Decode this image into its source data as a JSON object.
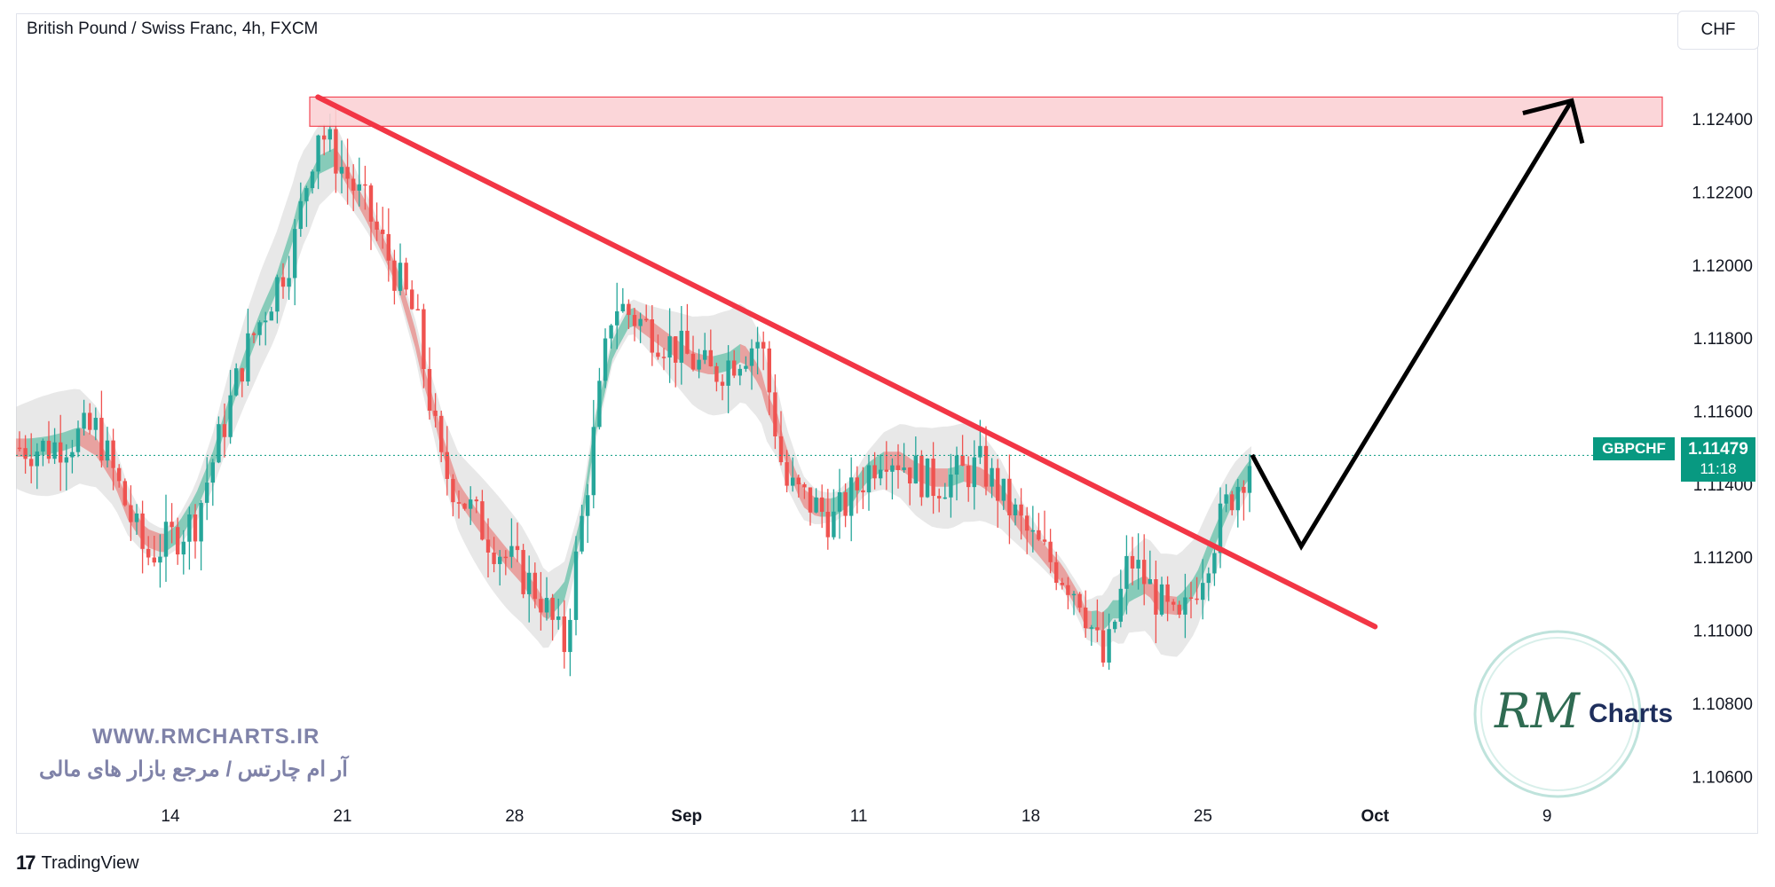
{
  "header": {
    "symbol_title": "British Pound / Swiss Franc, 4h, FXCM",
    "currency": "CHF"
  },
  "price_label": {
    "symbol": "GBPCHF",
    "price": "1.11479",
    "countdown": "11:18"
  },
  "watermark": {
    "url": "WWW.RMCHARTS.IR",
    "persian_text": "آر ام چارتس / مرجع بازار های مالی",
    "logo_word": "Charts",
    "logo_initials": "RM"
  },
  "footer": {
    "brand": "TradingView"
  },
  "colors": {
    "up": "#26a69a",
    "down": "#ef5350",
    "trendline": "#f23645",
    "zone_fill": "#fbd2d5",
    "zone_border": "#f23645",
    "band": "#d5d5d5",
    "arrow": "#000000"
  },
  "chart_data": {
    "type": "candlestick",
    "symbol": "GBPCHF",
    "timeframe": "4h",
    "y_axis_ticks": [
      "1.12400",
      "1.12200",
      "1.12000",
      "1.11800",
      "1.11600",
      "1.11400",
      "1.11200",
      "1.11000",
      "1.10800",
      "1.10600"
    ],
    "x_axis_ticks": [
      "14",
      "21",
      "28",
      "Sep",
      "11",
      "18",
      "25",
      "Oct",
      "9"
    ],
    "ylim": [
      1.1054,
      1.1258
    ],
    "last_price": 1.11479,
    "resistance_zone": {
      "low": 1.1238,
      "high": 1.1246
    },
    "trendline": [
      {
        "date": "Aug 20",
        "value": 1.1246
      },
      {
        "date": "Oct 2",
        "value": 1.1101
      }
    ],
    "projection_arrow": [
      {
        "date": "Sep 27",
        "value": 1.1148
      },
      {
        "date": "Sep 29",
        "value": 1.1123
      },
      {
        "date": "Oct 10",
        "value": 1.1245
      }
    ],
    "price_path": [
      {
        "date": "Aug 9",
        "value": 1.115
      },
      {
        "date": "Aug 11",
        "value": 1.1155
      },
      {
        "date": "Aug 13",
        "value": 1.112
      },
      {
        "date": "Aug 15",
        "value": 1.113
      },
      {
        "date": "Aug 17",
        "value": 1.1175
      },
      {
        "date": "Aug 19",
        "value": 1.1205
      },
      {
        "date": "Aug 20",
        "value": 1.1238
      },
      {
        "date": "Aug 22",
        "value": 1.1215
      },
      {
        "date": "Aug 24",
        "value": 1.1185
      },
      {
        "date": "Aug 25",
        "value": 1.1145
      },
      {
        "date": "Aug 27",
        "value": 1.1125
      },
      {
        "date": "Aug 29",
        "value": 1.111
      },
      {
        "date": "Aug 30",
        "value": 1.1095
      },
      {
        "date": "Sep 1",
        "value": 1.119
      },
      {
        "date": "Sep 3",
        "value": 1.118
      },
      {
        "date": "Sep 5",
        "value": 1.117
      },
      {
        "date": "Sep 7",
        "value": 1.118
      },
      {
        "date": "Sep 8",
        "value": 1.114
      },
      {
        "date": "Sep 10",
        "value": 1.113
      },
      {
        "date": "Sep 12",
        "value": 1.115
      },
      {
        "date": "Sep 14",
        "value": 1.114
      },
      {
        "date": "Sep 16",
        "value": 1.1145
      },
      {
        "date": "Sep 18",
        "value": 1.1125
      },
      {
        "date": "Sep 20",
        "value": 1.111
      },
      {
        "date": "Sep 21",
        "value": 1.109
      },
      {
        "date": "Sep 22",
        "value": 1.112
      },
      {
        "date": "Sep 24",
        "value": 1.11
      },
      {
        "date": "Sep 26",
        "value": 1.1135
      },
      {
        "date": "Sep 27",
        "value": 1.1148
      }
    ]
  }
}
